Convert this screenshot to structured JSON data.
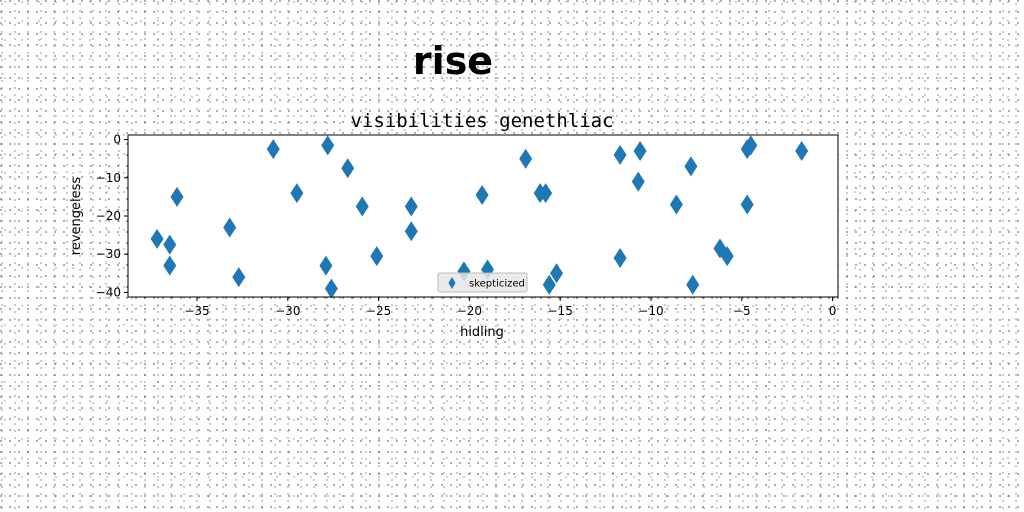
{
  "figure": {
    "suptitle": "rise"
  },
  "chart_data": {
    "type": "scatter",
    "title": "visibilities genethliac",
    "xlabel": "hidling",
    "ylabel": "revengeless",
    "xlim": [
      -38.8,
      0.3
    ],
    "ylim": [
      -41.2,
      1.2
    ],
    "xticks": [
      -35,
      -30,
      -25,
      -20,
      -15,
      -10,
      -5,
      0
    ],
    "yticks": [
      0,
      -10,
      -20,
      -30,
      -40
    ],
    "grid": false,
    "legend": "lower-center",
    "series": [
      {
        "name": "skepticized",
        "marker": "diamond",
        "color": "#1f77b4",
        "points": [
          [
            -37.2,
            -26
          ],
          [
            -36.5,
            -27.5
          ],
          [
            -36.5,
            -33
          ],
          [
            -36.1,
            -15
          ],
          [
            -33.2,
            -23
          ],
          [
            -32.7,
            -36
          ],
          [
            -30.8,
            -2.5
          ],
          [
            -29.5,
            -14
          ],
          [
            -27.8,
            -1.5
          ],
          [
            -27.9,
            -33
          ],
          [
            -27.6,
            -39
          ],
          [
            -26.7,
            -7.5
          ],
          [
            -25.9,
            -17.5
          ],
          [
            -25.1,
            -30.5
          ],
          [
            -23.2,
            -17.5
          ],
          [
            -23.2,
            -24
          ],
          [
            -20.3,
            -34.5
          ],
          [
            -19.3,
            -14.5
          ],
          [
            -19.0,
            -34
          ],
          [
            -16.9,
            -5
          ],
          [
            -16.1,
            -14
          ],
          [
            -15.8,
            -14
          ],
          [
            -15.6,
            -38
          ],
          [
            -15.2,
            -35
          ],
          [
            -11.7,
            -4
          ],
          [
            -11.7,
            -31
          ],
          [
            -10.6,
            -3
          ],
          [
            -10.7,
            -11
          ],
          [
            -8.6,
            -17
          ],
          [
            -7.8,
            -7
          ],
          [
            -7.7,
            -38
          ],
          [
            -6.2,
            -28.5
          ],
          [
            -5.8,
            -30.5
          ],
          [
            -4.7,
            -2.5
          ],
          [
            -4.5,
            -1.5
          ],
          [
            -4.7,
            -17
          ],
          [
            -1.7,
            -3
          ]
        ]
      }
    ]
  }
}
